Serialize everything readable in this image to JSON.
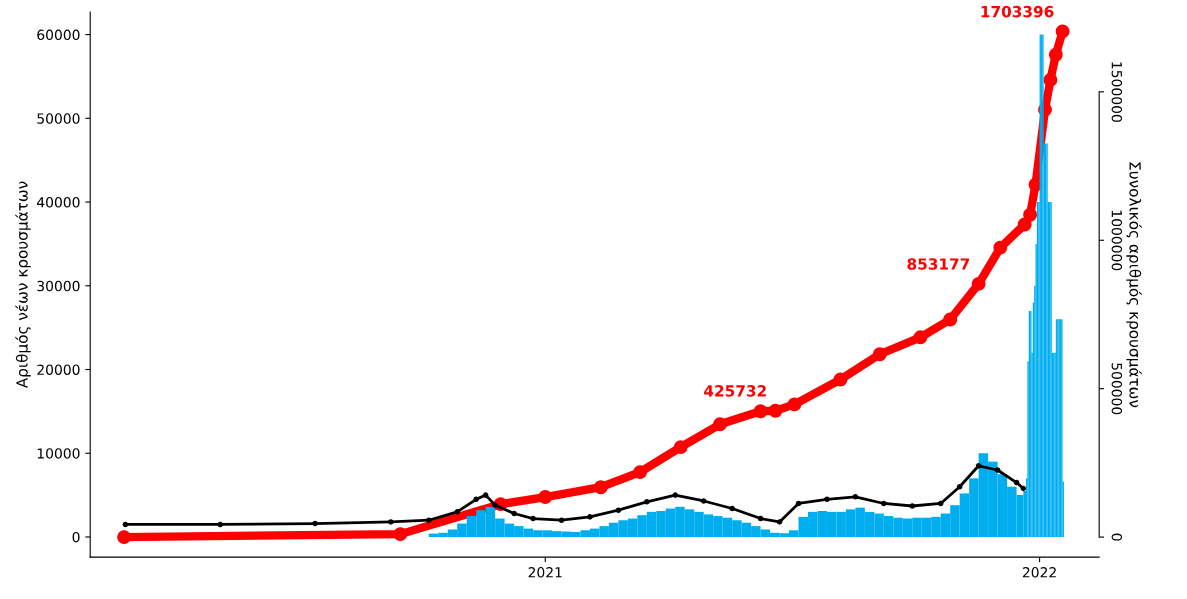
{
  "chart_data": {
    "type": "bar",
    "ylabel": "Αριθμός νέων κρουσμάτων",
    "y2label": "Συνολικός αριθμός κρουσμάτων",
    "xlim": [
      "2020-01-31",
      "2022-02-14"
    ],
    "xticks": [
      {
        "value": "2021-01-01",
        "label": "2021"
      },
      {
        "value": "2022-01-01",
        "label": "2022"
      }
    ],
    "ylim": [
      -2400,
      62700
    ],
    "yticks": [
      0,
      10000,
      20000,
      30000,
      40000,
      50000,
      60000
    ],
    "y2lim": [
      -67300,
      1769000
    ],
    "y2ticks": [
      0,
      500000,
      1000000,
      1500000
    ],
    "grid": false,
    "legend": false,
    "series": [
      {
        "color": "#00aeef",
        "x": [
          "2020-02-26",
          "2020-03-11",
          "2020-03-25",
          "2020-04-08",
          "2020-04-22",
          "2020-05-06",
          "2020-05-20",
          "2020-06-03",
          "2020-06-17",
          "2020-07-01",
          "2020-07-15",
          "2020-07-29",
          "2020-08-12",
          "2020-08-26",
          "2020-09-09",
          "2020-09-23",
          "2020-10-07",
          "2020-10-14",
          "2020-10-21",
          "2020-10-28",
          "2020-11-04",
          "2020-11-11",
          "2020-11-18",
          "2020-11-25",
          "2020-12-02",
          "2020-12-09",
          "2020-12-16",
          "2020-12-23",
          "2020-12-30",
          "2021-01-06",
          "2021-01-13",
          "2021-01-20",
          "2021-01-27",
          "2021-02-03",
          "2021-02-10",
          "2021-02-17",
          "2021-02-24",
          "2021-03-03",
          "2021-03-10",
          "2021-03-17",
          "2021-03-24",
          "2021-03-31",
          "2021-04-07",
          "2021-04-14",
          "2021-04-21",
          "2021-04-28",
          "2021-05-05",
          "2021-05-12",
          "2021-05-19",
          "2021-05-26",
          "2021-06-02",
          "2021-06-09",
          "2021-06-16",
          "2021-06-23",
          "2021-06-30",
          "2021-07-07",
          "2021-07-14",
          "2021-07-21",
          "2021-07-28",
          "2021-08-04",
          "2021-08-11",
          "2021-08-18",
          "2021-08-25",
          "2021-09-01",
          "2021-09-08",
          "2021-09-15",
          "2021-09-22",
          "2021-09-29",
          "2021-10-06",
          "2021-10-13",
          "2021-10-20",
          "2021-10-27",
          "2021-11-03",
          "2021-11-10",
          "2021-11-17",
          "2021-11-24",
          "2021-12-01",
          "2021-12-08",
          "2021-12-15",
          "2021-12-20",
          "2021-12-22",
          "2021-12-23",
          "2021-12-24",
          "2021-12-25",
          "2021-12-26",
          "2021-12-27",
          "2021-12-28",
          "2021-12-29",
          "2021-12-30",
          "2021-12-31",
          "2022-01-01",
          "2022-01-02",
          "2022-01-03",
          "2022-01-04",
          "2022-01-05",
          "2022-01-06",
          "2022-01-07",
          "2022-01-08",
          "2022-01-09",
          "2022-01-10",
          "2022-01-11",
          "2022-01-12",
          "2022-01-13",
          "2022-01-14",
          "2022-01-15",
          "2022-01-16",
          "2022-01-17",
          "2022-01-18"
        ],
        "values": [
          0,
          0,
          0,
          0,
          0,
          0,
          0,
          0,
          0,
          0,
          0,
          0,
          0,
          0,
          0,
          0,
          400,
          500,
          900,
          1600,
          2500,
          3200,
          3600,
          2200,
          1600,
          1300,
          1000,
          800,
          800,
          700,
          650,
          600,
          800,
          1000,
          1300,
          1700,
          2000,
          2200,
          2600,
          3000,
          3100,
          3400,
          3600,
          3300,
          3000,
          2700,
          2500,
          2300,
          2000,
          1700,
          1300,
          900,
          500,
          450,
          800,
          2400,
          3000,
          3100,
          3000,
          3000,
          3300,
          3500,
          3000,
          2800,
          2500,
          2300,
          2200,
          2300,
          2300,
          2400,
          2800,
          3800,
          5200,
          7000,
          10000,
          9000,
          7500,
          6000,
          5000,
          5500,
          7000,
          21000,
          27000,
          27000,
          22000,
          28000,
          30000,
          35000,
          40000,
          40000,
          60000,
          60000,
          60000,
          47000,
          47000,
          47000,
          40000,
          40000,
          40000,
          22000,
          22000,
          22000,
          26000,
          26000,
          26000,
          26000,
          26000,
          6600
        ]
      },
      {
        "type": "line",
        "color": "#000000",
        "marker": "circle",
        "x": [
          "2020-02-26",
          "2020-05-06",
          "2020-07-15",
          "2020-09-09",
          "2020-10-07",
          "2020-10-28",
          "2020-11-11",
          "2020-11-18",
          "2020-11-25",
          "2020-12-09",
          "2020-12-23",
          "2021-01-13",
          "2021-02-03",
          "2021-02-24",
          "2021-03-17",
          "2021-04-07",
          "2021-04-28",
          "2021-05-19",
          "2021-06-09",
          "2021-06-23",
          "2021-07-07",
          "2021-07-28",
          "2021-08-18",
          "2021-09-08",
          "2021-09-29",
          "2021-10-20",
          "2021-11-03",
          "2021-11-17",
          "2021-12-01",
          "2021-12-15",
          "2021-12-20"
        ],
        "values": [
          1500,
          1500,
          1600,
          1800,
          2000,
          3000,
          4500,
          5000,
          3800,
          2800,
          2200,
          2000,
          2400,
          3200,
          4200,
          5000,
          4300,
          3400,
          2200,
          1800,
          4000,
          4500,
          4800,
          4000,
          3700,
          4000,
          6000,
          8500,
          8000,
          6500,
          5800
        ]
      },
      {
        "type": "line",
        "axis": "y2",
        "color": "#ff0000",
        "marker": "circle",
        "x": [
          "2020-02-25",
          "2020-09-16",
          "2020-11-29",
          "2021-01-01",
          "2021-02-11",
          "2021-03-12",
          "2021-04-11",
          "2021-05-10",
          "2021-06-09",
          "2021-06-20",
          "2021-07-04",
          "2021-08-07",
          "2021-09-05",
          "2021-10-05",
          "2021-10-27",
          "2021-11-17",
          "2021-12-03",
          "2021-12-21",
          "2021-12-25",
          "2021-12-29",
          "2022-01-05",
          "2022-01-09",
          "2022-01-13",
          "2022-01-18"
        ],
        "values": [
          0,
          10000,
          111000,
          135000,
          168000,
          219000,
          303000,
          380000,
          424000,
          425732,
          447000,
          531000,
          616000,
          673000,
          733000,
          853177,
          975000,
          1053000,
          1086000,
          1187000,
          1440000,
          1540000,
          1625000,
          1703396
        ],
        "value_labels": [
          null,
          null,
          null,
          null,
          null,
          null,
          null,
          null,
          null,
          "425732",
          null,
          null,
          null,
          null,
          null,
          "853177",
          null,
          null,
          null,
          null,
          null,
          null,
          null,
          "1703396"
        ]
      }
    ]
  }
}
